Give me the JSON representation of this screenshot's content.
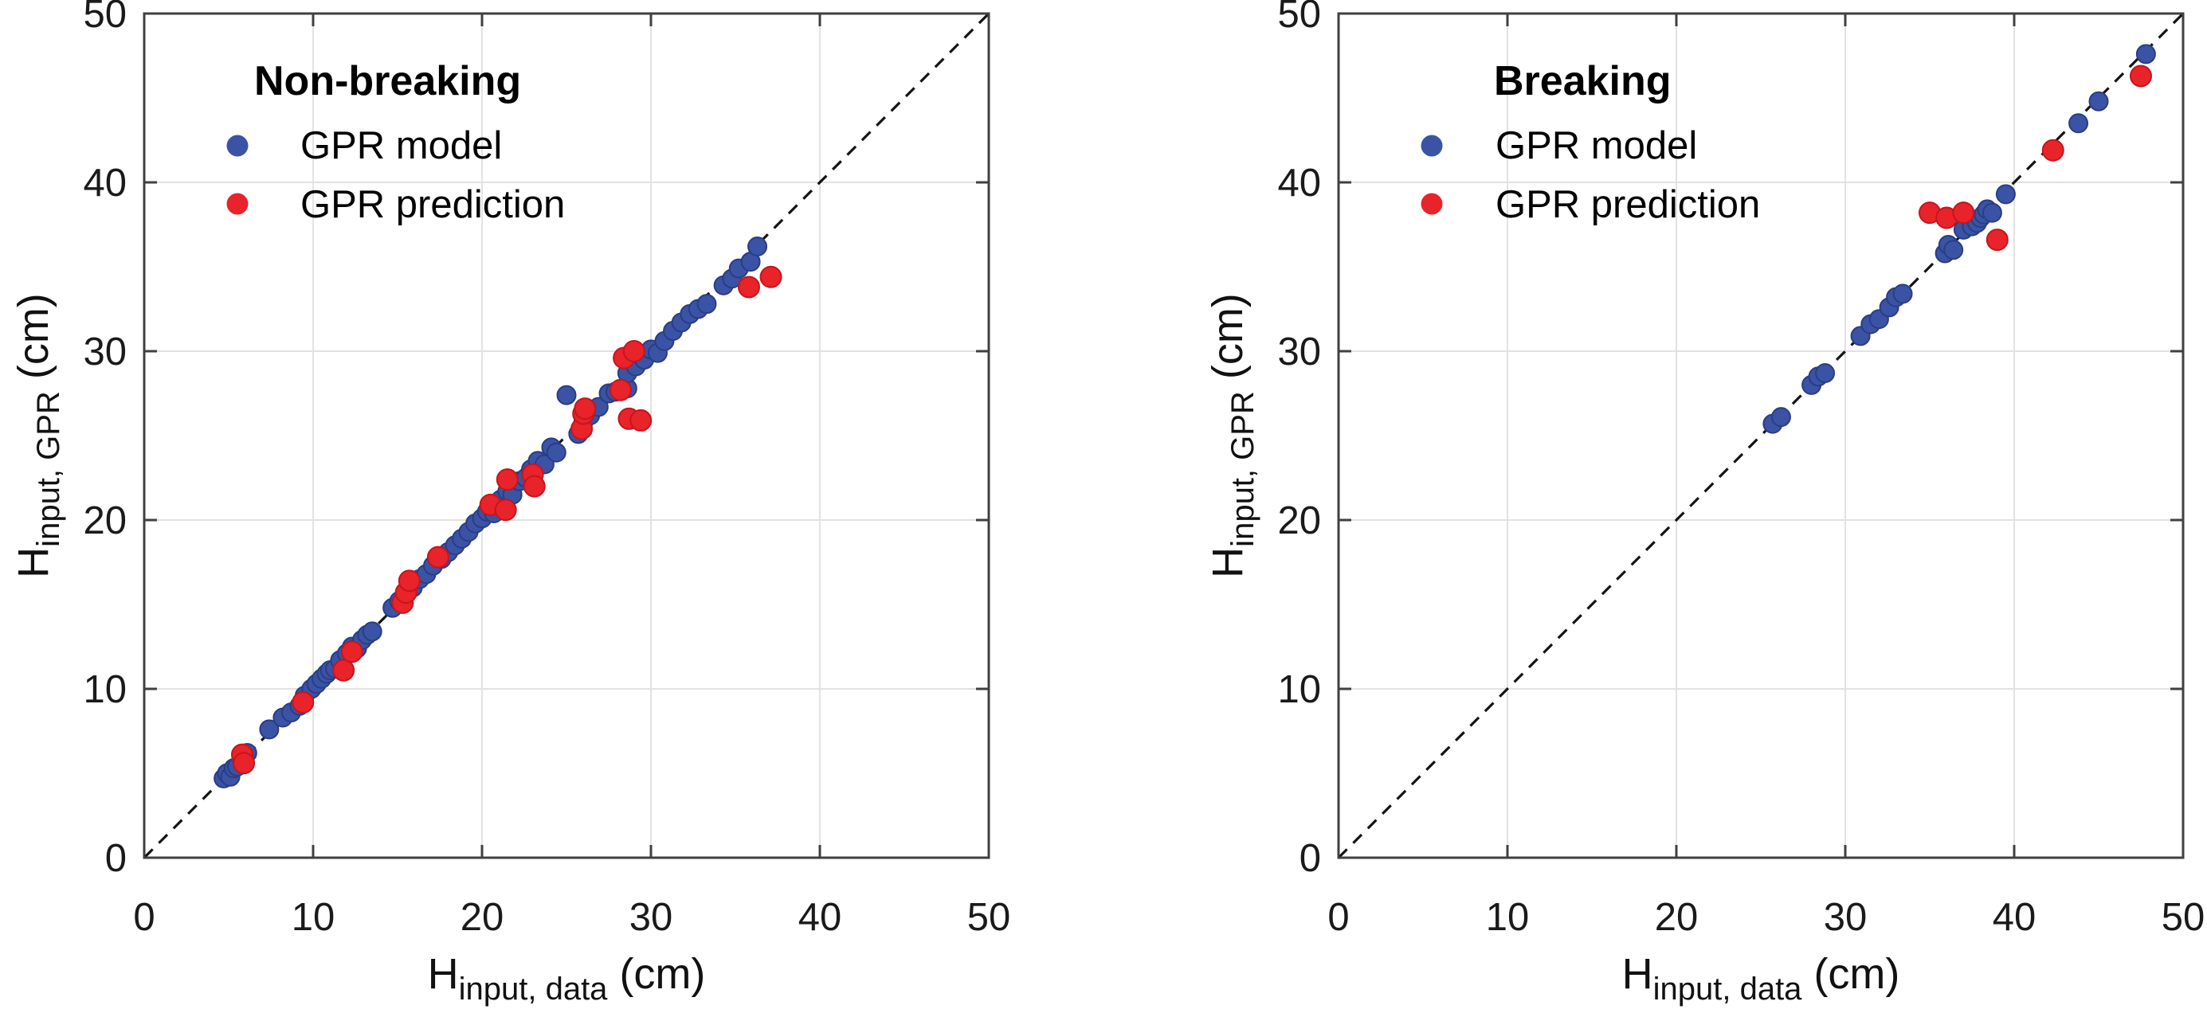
{
  "figure": {
    "background": "#ffffff",
    "grid_color": "#e2e2e2",
    "frame_color": "#404040",
    "identity_line_color": "#141414",
    "tick_label_color": "#1a1a1a"
  },
  "chart_data": [
    {
      "type": "scatter",
      "panel": "left",
      "title": "Non-breaking",
      "xlabel_main": "H",
      "xlabel_sub": "input, data",
      "xlabel_unit": " (cm)",
      "ylabel_main": "H",
      "ylabel_sub": "input, GPR",
      "ylabel_unit": " (cm)",
      "xlim": [
        0,
        50
      ],
      "ylim": [
        0,
        50
      ],
      "xticks": [
        0,
        10,
        20,
        30,
        40,
        50
      ],
      "yticks": [
        0,
        10,
        20,
        30,
        40,
        50
      ],
      "grid": true,
      "identity_line": {
        "style": "dashed",
        "slope": 1,
        "intercept": 0
      },
      "legend_position": "upper-left",
      "series": [
        {
          "name": "GPR model",
          "color": "#3a53a4",
          "edge_color": "#2a3d85",
          "marker": "circle",
          "points": [
            [
              4.7,
              4.7
            ],
            [
              4.9,
              5.0
            ],
            [
              5.1,
              4.8
            ],
            [
              5.3,
              5.3
            ],
            [
              5.5,
              5.4
            ],
            [
              5.8,
              5.8
            ],
            [
              6.1,
              6.2
            ],
            [
              7.4,
              7.6
            ],
            [
              8.2,
              8.3
            ],
            [
              8.7,
              8.6
            ],
            [
              9.2,
              9.0
            ],
            [
              9.5,
              9.6
            ],
            [
              9.9,
              10.0
            ],
            [
              10.2,
              10.3
            ],
            [
              10.5,
              10.6
            ],
            [
              10.8,
              10.9
            ],
            [
              11.0,
              11.1
            ],
            [
              11.3,
              11.2
            ],
            [
              11.6,
              11.7
            ],
            [
              12.0,
              12.1
            ],
            [
              12.3,
              12.5
            ],
            [
              12.6,
              12.4
            ],
            [
              12.9,
              12.9
            ],
            [
              13.2,
              13.2
            ],
            [
              13.5,
              13.4
            ],
            [
              14.7,
              14.8
            ],
            [
              15.1,
              15.2
            ],
            [
              15.5,
              15.6
            ],
            [
              15.9,
              16.0
            ],
            [
              16.3,
              16.5
            ],
            [
              16.7,
              16.8
            ],
            [
              17.1,
              17.3
            ],
            [
              17.6,
              17.7
            ],
            [
              18.0,
              18.1
            ],
            [
              18.4,
              18.5
            ],
            [
              18.8,
              18.9
            ],
            [
              19.2,
              19.3
            ],
            [
              19.6,
              19.8
            ],
            [
              20.0,
              20.1
            ],
            [
              20.3,
              20.5
            ],
            [
              20.7,
              20.4
            ],
            [
              21.1,
              21.2
            ],
            [
              21.5,
              21.7
            ],
            [
              21.8,
              21.5
            ],
            [
              22.2,
              22.3
            ],
            [
              22.6,
              22.5
            ],
            [
              22.9,
              23.0
            ],
            [
              23.3,
              23.5
            ],
            [
              23.7,
              23.3
            ],
            [
              24.1,
              24.3
            ],
            [
              24.4,
              24.0
            ],
            [
              25.0,
              27.4
            ],
            [
              25.7,
              25.1
            ],
            [
              26.0,
              25.8
            ],
            [
              26.4,
              26.2
            ],
            [
              26.9,
              26.7
            ],
            [
              27.5,
              27.5
            ],
            [
              27.9,
              27.6
            ],
            [
              28.6,
              27.8
            ],
            [
              28.6,
              28.7
            ],
            [
              29.1,
              29.1
            ],
            [
              29.6,
              29.5
            ],
            [
              30.0,
              30.1
            ],
            [
              30.4,
              29.9
            ],
            [
              30.8,
              30.6
            ],
            [
              31.3,
              31.2
            ],
            [
              31.8,
              31.7
            ],
            [
              32.3,
              32.2
            ],
            [
              32.8,
              32.5
            ],
            [
              33.3,
              32.8
            ],
            [
              34.3,
              33.9
            ],
            [
              34.8,
              34.3
            ],
            [
              35.2,
              34.9
            ],
            [
              35.9,
              35.3
            ],
            [
              36.3,
              36.2
            ]
          ]
        },
        {
          "name": "GPR prediction",
          "color": "#e8232a",
          "edge_color": "#c6151c",
          "marker": "circle",
          "points": [
            [
              5.8,
              6.1
            ],
            [
              5.9,
              5.6
            ],
            [
              9.4,
              9.2
            ],
            [
              11.8,
              11.1
            ],
            [
              12.3,
              12.2
            ],
            [
              15.3,
              15.1
            ],
            [
              15.5,
              15.7
            ],
            [
              15.7,
              16.4
            ],
            [
              17.4,
              17.8
            ],
            [
              20.5,
              20.9
            ],
            [
              21.4,
              20.6
            ],
            [
              21.5,
              22.4
            ],
            [
              23.0,
              22.7
            ],
            [
              23.1,
              22.0
            ],
            [
              25.9,
              25.4
            ],
            [
              26.0,
              26.3
            ],
            [
              26.1,
              26.6
            ],
            [
              28.2,
              27.7
            ],
            [
              28.4,
              29.6
            ],
            [
              29.0,
              30.0
            ],
            [
              28.7,
              26.0
            ],
            [
              29.4,
              25.9
            ],
            [
              35.8,
              33.8
            ],
            [
              37.1,
              34.4
            ]
          ]
        }
      ]
    },
    {
      "type": "scatter",
      "panel": "right",
      "title": "Breaking",
      "xlabel_main": "H",
      "xlabel_sub": "input, data",
      "xlabel_unit": " (cm)",
      "ylabel_main": "H",
      "ylabel_sub": "input, GPR",
      "ylabel_unit": " (cm)",
      "xlim": [
        0,
        50
      ],
      "ylim": [
        0,
        50
      ],
      "xticks": [
        0,
        10,
        20,
        30,
        40,
        50
      ],
      "yticks": [
        0,
        10,
        20,
        30,
        40,
        50
      ],
      "grid": true,
      "identity_line": {
        "style": "dashed",
        "slope": 1,
        "intercept": 0
      },
      "legend_position": "upper-left",
      "series": [
        {
          "name": "GPR model",
          "color": "#3a53a4",
          "edge_color": "#2a3d85",
          "marker": "circle",
          "points": [
            [
              25.7,
              25.7
            ],
            [
              26.2,
              26.1
            ],
            [
              28.0,
              28.0
            ],
            [
              28.4,
              28.5
            ],
            [
              28.8,
              28.7
            ],
            [
              30.9,
              30.9
            ],
            [
              31.5,
              31.6
            ],
            [
              32.0,
              31.9
            ],
            [
              32.6,
              32.6
            ],
            [
              33.0,
              33.2
            ],
            [
              33.4,
              33.4
            ],
            [
              35.9,
              35.8
            ],
            [
              36.1,
              36.3
            ],
            [
              36.4,
              36.0
            ],
            [
              37.0,
              37.2
            ],
            [
              37.5,
              37.4
            ],
            [
              37.8,
              37.6
            ],
            [
              38.0,
              37.9
            ],
            [
              38.2,
              38.1
            ],
            [
              38.4,
              38.4
            ],
            [
              38.7,
              38.2
            ],
            [
              39.5,
              39.3
            ],
            [
              43.8,
              43.5
            ],
            [
              45.0,
              44.8
            ],
            [
              47.8,
              47.6
            ]
          ]
        },
        {
          "name": "GPR prediction",
          "color": "#e8232a",
          "edge_color": "#c6151c",
          "marker": "circle",
          "points": [
            [
              35.0,
              38.2
            ],
            [
              36.0,
              37.9
            ],
            [
              37.0,
              38.2
            ],
            [
              39.0,
              36.6
            ],
            [
              42.3,
              41.9
            ],
            [
              47.5,
              46.3
            ]
          ]
        }
      ]
    }
  ]
}
